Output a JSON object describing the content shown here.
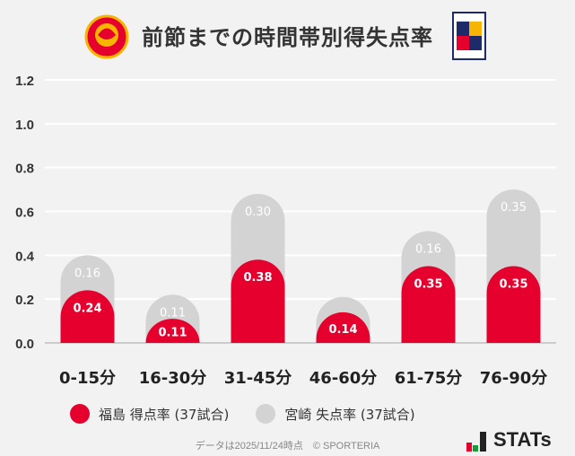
{
  "chart_data": {
    "type": "bar",
    "stacked": true,
    "title": "前節までの時間帯別得失点率",
    "categories": [
      "0-15分",
      "16-30分",
      "31-45分",
      "46-60分",
      "61-75分",
      "76-90分"
    ],
    "series": [
      {
        "name": "福島 得点率 (37試合)",
        "color": "#e6002d",
        "values": [
          0.24,
          0.11,
          0.38,
          0.14,
          0.35,
          0.35
        ],
        "labels": [
          "0.24",
          "0.11",
          "0.38",
          "0.14",
          "0.35",
          "0.35"
        ]
      },
      {
        "name": "宮崎 失点率 (37試合)",
        "color": "#d3d3d3",
        "values": [
          0.16,
          0.11,
          0.3,
          0.07,
          0.16,
          0.35
        ],
        "labels": [
          "0.16",
          "0.11",
          "0.30",
          "",
          "0.16",
          "0.35"
        ]
      }
    ],
    "ylim": [
      0,
      1.2
    ],
    "yticks": [
      "0.0",
      "0.2",
      "0.4",
      "0.6",
      "0.8",
      "1.0",
      "1.2"
    ],
    "grid": true,
    "legend": "bottom-left"
  },
  "teams": {
    "home_logo": "FUKUSHIMA UNITED FC",
    "away_logo": "TEGEVAJARO MIYAZAKI"
  },
  "footer": "データは2025/11/24時点　© SPORTERIA",
  "brand": "STATs"
}
